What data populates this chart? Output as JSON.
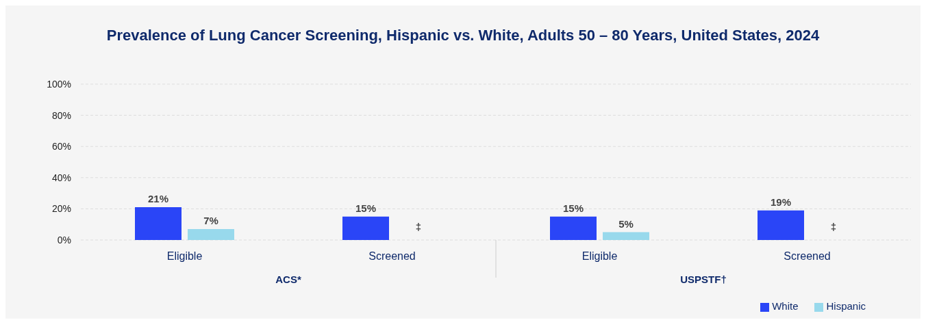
{
  "chart_data": {
    "type": "bar",
    "title": "Prevalence of Lung Cancer Screening, Hispanic vs. White, Adults 50 – 80 Years, United States, 2024",
    "categories": [
      "Eligible",
      "Screened",
      "Eligible",
      "Screened"
    ],
    "series": [
      {
        "name": "White",
        "color": "#2a45f7",
        "values": [
          21,
          15,
          15,
          19
        ],
        "value_labels": [
          "21%",
          "15%",
          "15%",
          "19%"
        ]
      },
      {
        "name": "Hispanic",
        "color": "#98d9ec",
        "values": [
          7,
          null,
          5,
          null
        ],
        "value_labels": [
          "7%",
          "‡",
          "5%",
          "‡"
        ]
      }
    ],
    "ylim": [
      0,
      100
    ],
    "yticks": [
      {
        "value": 0,
        "label": "0%"
      },
      {
        "value": 20,
        "label": "20%"
      },
      {
        "value": 40,
        "label": "40%"
      },
      {
        "value": 60,
        "label": "60%"
      },
      {
        "value": 80,
        "label": "80%"
      },
      {
        "value": 100,
        "label": "100%"
      }
    ],
    "grid": "y",
    "legend": "bottom right",
    "annotations": [
      "ACS*",
      "USPSTF†"
    ]
  }
}
